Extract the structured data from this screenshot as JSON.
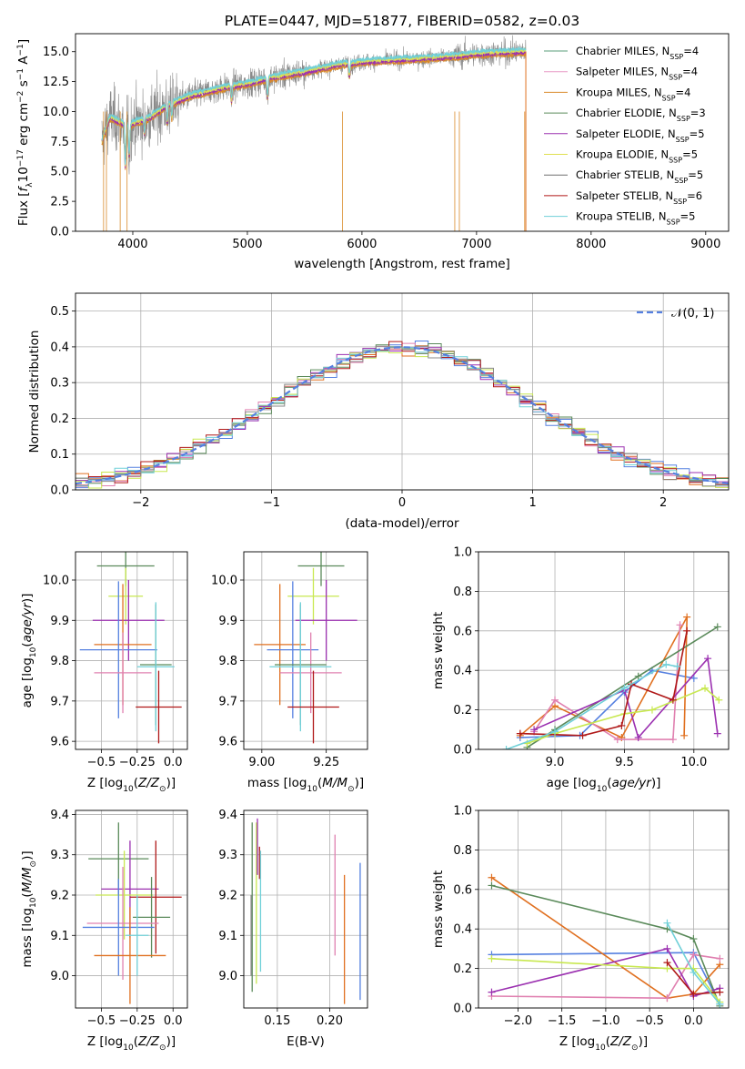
{
  "colors": {
    "c_mi": "#5a9e7a",
    "s_mi": "#e89ac6",
    "k_mi": "#d98a2a",
    "c_el": "#5a8a5a",
    "s_el": "#9b30b0",
    "k_el": "#e0e050",
    "c_st": "#707070",
    "s_st": "#b01818",
    "k_st": "#70d0d8",
    "blue": "#5580e0",
    "orange": "#e07020",
    "pink": "#e080b0",
    "green": "#5a8a5a",
    "purple": "#9b30b0",
    "lime": "#c8e850",
    "red": "#b01818",
    "cyan": "#70d0d8",
    "gray": "#8a8a8a"
  },
  "chart_data": [
    {
      "id": "spectrum",
      "type": "line",
      "title": "PLATE=0447, MJD=51877, FIBERID=0582, z=0.03",
      "xlabel": "wavelength [Angstrom, rest frame]",
      "ylabel": "Flux [f_λ 10^-17 erg cm^-2 s^-1 A^-1]",
      "xlim": [
        3500,
        9200
      ],
      "ylim": [
        0,
        16.5
      ],
      "xticks": [
        "4000",
        "5000",
        "6000",
        "7000",
        "8000",
        "9000"
      ],
      "yticks": [
        "0.0",
        "2.5",
        "5.0",
        "7.5",
        "10.0",
        "12.5",
        "15.0"
      ],
      "grid": false,
      "legend_position": "top-right",
      "legend": [
        {
          "label": "Chabrier MILES, N",
          "sub": "SSP",
          "val": "=4",
          "color_key": "c_mi"
        },
        {
          "label": "Salpeter MILES, N",
          "sub": "SSP",
          "val": "=4",
          "color_key": "s_mi"
        },
        {
          "label": "Kroupa MILES, N",
          "sub": "SSP",
          "val": "=4",
          "color_key": "k_mi"
        },
        {
          "label": "Chabrier ELODIE, N",
          "sub": "SSP",
          "val": "=3",
          "color_key": "c_el"
        },
        {
          "label": "Salpeter ELODIE, N",
          "sub": "SSP",
          "val": "=5",
          "color_key": "s_el"
        },
        {
          "label": "Kroupa ELODIE, N",
          "sub": "SSP",
          "val": "=5",
          "color_key": "k_el"
        },
        {
          "label": "Chabrier STELIB, N",
          "sub": "SSP",
          "val": "=5",
          "color_key": "c_st"
        },
        {
          "label": "Salpeter STELIB, N",
          "sub": "SSP",
          "val": "=6",
          "color_key": "s_st"
        },
        {
          "label": "Kroupa STELIB, N",
          "sub": "SSP",
          "val": "=5",
          "color_key": "k_st"
        }
      ],
      "data_range": [
        3730,
        7430
      ],
      "continuum": [
        [
          3730,
          7.5
        ],
        [
          3800,
          9.5
        ],
        [
          3950,
          8.8
        ],
        [
          4150,
          9.5
        ],
        [
          4300,
          10.5
        ],
        [
          4500,
          11.3
        ],
        [
          4800,
          12.0
        ],
        [
          5000,
          12.3
        ],
        [
          5200,
          12.8
        ],
        [
          5500,
          13.3
        ],
        [
          5800,
          13.9
        ],
        [
          6100,
          14.2
        ],
        [
          6500,
          14.4
        ],
        [
          6800,
          14.6
        ],
        [
          7000,
          14.8
        ],
        [
          7200,
          14.9
        ],
        [
          7430,
          15.0
        ]
      ],
      "absorption": [
        [
          3934,
          3.5
        ],
        [
          3969,
          2.5
        ],
        [
          4102,
          1.2
        ],
        [
          4300,
          1.4
        ],
        [
          4340,
          1.2
        ],
        [
          4861,
          1.2
        ],
        [
          5175,
          1.5
        ],
        [
          5890,
          1.0
        ]
      ],
      "spikes": [
        [
          3745,
          0
        ],
        [
          3770,
          0
        ],
        [
          3890,
          0
        ],
        [
          3950,
          0
        ],
        [
          5830,
          0
        ],
        [
          6810,
          0
        ],
        [
          6850,
          0
        ],
        [
          7420,
          0
        ]
      ]
    },
    {
      "id": "residuals",
      "type": "histogram",
      "xlabel": "(data-model)/error",
      "ylabel": "Normed distribution",
      "xlim": [
        -2.5,
        2.5
      ],
      "ylim": [
        0,
        0.55
      ],
      "xticks": [
        "−2",
        "−1",
        "0",
        "1",
        "2"
      ],
      "yticks": [
        "0.0",
        "0.1",
        "0.2",
        "0.3",
        "0.4",
        "0.5"
      ],
      "grid": true,
      "legend_position": "top-right",
      "legend": [
        {
          "label": "𝒩(0, 1)",
          "color_key": "blue",
          "dashed": true
        }
      ],
      "bin_width": 0.1
    },
    {
      "id": "age_vs_Z",
      "type": "errorbar",
      "xlabel": "Z [log10(Z/Z⊙)]",
      "ylabel": "age [log10(age/yr)]",
      "xlim": [
        -0.68,
        0.1
      ],
      "ylim": [
        9.58,
        10.07
      ],
      "xticks": [
        "−0.5",
        "−0.25",
        "0.0"
      ],
      "yticks": [
        "9.6",
        "9.7",
        "9.8",
        "9.9",
        "10.0"
      ],
      "grid": true,
      "points": [
        {
          "x": -0.33,
          "y": 10.035,
          "xe": 0.2,
          "ye": 0.05,
          "c": "green"
        },
        {
          "x": -0.33,
          "y": 9.96,
          "xe": 0.12,
          "ye": 0.07,
          "c": "lime"
        },
        {
          "x": -0.31,
          "y": 9.9,
          "xe": 0.25,
          "ye": 0.1,
          "c": "purple"
        },
        {
          "x": -0.35,
          "y": 9.84,
          "xe": 0.2,
          "ye": 0.15,
          "c": "orange"
        },
        {
          "x": -0.38,
          "y": 9.827,
          "xe": 0.27,
          "ye": 0.17,
          "c": "blue"
        },
        {
          "x": -0.35,
          "y": 9.77,
          "xe": 0.2,
          "ye": 0.1,
          "c": "pink"
        },
        {
          "x": -0.12,
          "y": 9.79,
          "xe": 0.11,
          "ye": 0.15,
          "c": "green"
        },
        {
          "x": -0.12,
          "y": 9.785,
          "xe": 0.13,
          "ye": 0.16,
          "c": "cyan"
        },
        {
          "x": -0.1,
          "y": 9.685,
          "xe": 0.16,
          "ye": 0.09,
          "c": "red"
        }
      ]
    },
    {
      "id": "age_vs_mass",
      "type": "errorbar",
      "xlabel": "mass [log10(M/M⊙)]",
      "ylabel": "",
      "xlim": [
        8.93,
        9.41
      ],
      "ylim": [
        9.58,
        10.07
      ],
      "xticks": [
        "9.00",
        "9.25"
      ],
      "yticks": [
        "9.6",
        "9.7",
        "9.8",
        "9.9",
        "10.0"
      ],
      "grid": true,
      "points": [
        {
          "x": 9.23,
          "y": 10.035,
          "xe": 0.09,
          "ye": 0.05,
          "c": "green"
        },
        {
          "x": 9.2,
          "y": 9.96,
          "xe": 0.1,
          "ye": 0.07,
          "c": "lime"
        },
        {
          "x": 9.25,
          "y": 9.9,
          "xe": 0.12,
          "ye": 0.1,
          "c": "purple"
        },
        {
          "x": 9.07,
          "y": 9.84,
          "xe": 0.1,
          "ye": 0.15,
          "c": "orange"
        },
        {
          "x": 9.12,
          "y": 9.827,
          "xe": 0.1,
          "ye": 0.17,
          "c": "blue"
        },
        {
          "x": 9.19,
          "y": 9.77,
          "xe": 0.12,
          "ye": 0.1,
          "c": "pink"
        },
        {
          "x": 9.15,
          "y": 9.79,
          "xe": 0.1,
          "ye": 0.15,
          "c": "green"
        },
        {
          "x": 9.15,
          "y": 9.785,
          "xe": 0.12,
          "ye": 0.16,
          "c": "cyan"
        },
        {
          "x": 9.2,
          "y": 9.685,
          "xe": 0.1,
          "ye": 0.09,
          "c": "red"
        }
      ]
    },
    {
      "id": "weight_vs_age",
      "type": "line",
      "xlabel": "age [log10(age/yr)]",
      "ylabel": "mass weight",
      "xlim": [
        8.45,
        10.25
      ],
      "ylim": [
        0,
        1.0
      ],
      "xticks": [
        "9.0",
        "9.5",
        "10.0"
      ],
      "yticks": [
        "0.0",
        "0.2",
        "0.4",
        "0.6",
        "0.8",
        "1.0"
      ],
      "grid": true,
      "series": [
        {
          "c": "blue",
          "x": [
            8.75,
            9.18,
            9.5,
            9.7,
            10.0
          ],
          "y": [
            0.06,
            0.07,
            0.29,
            0.4,
            0.36
          ]
        },
        {
          "c": "orange",
          "x": [
            8.75,
            9.0,
            9.48,
            9.95,
            9.93
          ],
          "y": [
            0.07,
            0.22,
            0.06,
            0.67,
            0.07
          ]
        },
        {
          "c": "pink",
          "x": [
            8.85,
            9.0,
            9.45,
            9.85,
            9.9
          ],
          "y": [
            0.09,
            0.25,
            0.05,
            0.05,
            0.63
          ]
        },
        {
          "c": "green",
          "x": [
            8.8,
            9.0,
            9.6,
            10.17
          ],
          "y": [
            0.01,
            0.1,
            0.37,
            0.62
          ]
        },
        {
          "c": "purple",
          "x": [
            8.85,
            9.5,
            9.6,
            10.1,
            10.17
          ],
          "y": [
            0.1,
            0.3,
            0.06,
            0.46,
            0.08
          ]
        },
        {
          "c": "lime",
          "x": [
            8.8,
            9.0,
            9.5,
            9.7,
            10.08,
            10.18
          ],
          "y": [
            0.03,
            0.08,
            0.18,
            0.2,
            0.31,
            0.25
          ]
        },
        {
          "c": "red",
          "x": [
            8.75,
            9.2,
            9.48,
            9.55,
            9.85,
            9.95
          ],
          "y": [
            0.08,
            0.07,
            0.12,
            0.33,
            0.25,
            0.6
          ]
        },
        {
          "c": "cyan",
          "x": [
            8.65,
            9.0,
            9.5,
            9.8,
            9.88
          ],
          "y": [
            0.0,
            0.09,
            0.31,
            0.43,
            0.42
          ]
        }
      ]
    },
    {
      "id": "mass_vs_Z",
      "type": "errorbar",
      "xlabel": "Z [log10(Z/Z⊙)]",
      "ylabel": "mass [log10(M/M⊙)]",
      "xlim": [
        -0.68,
        0.1
      ],
      "ylim": [
        8.92,
        9.41
      ],
      "xticks": [
        "−0.5",
        "−0.25",
        "0.0"
      ],
      "yticks": [
        "9.0",
        "9.1",
        "9.2",
        "9.3",
        "9.4"
      ],
      "grid": true,
      "points": [
        {
          "x": -0.38,
          "y": 9.29,
          "xe": 0.21,
          "ye": 0.09,
          "c": "green"
        },
        {
          "x": -0.3,
          "y": 9.215,
          "xe": 0.2,
          "ye": 0.12,
          "c": "purple"
        },
        {
          "x": -0.34,
          "y": 9.2,
          "xe": 0.2,
          "ye": 0.11,
          "c": "lime"
        },
        {
          "x": -0.12,
          "y": 9.195,
          "xe": 0.18,
          "ye": 0.14,
          "c": "red"
        },
        {
          "x": -0.15,
          "y": 9.145,
          "xe": 0.13,
          "ye": 0.1,
          "c": "green"
        },
        {
          "x": -0.35,
          "y": 9.13,
          "xe": 0.25,
          "ye": 0.14,
          "c": "pink"
        },
        {
          "x": -0.38,
          "y": 9.12,
          "xe": 0.25,
          "ye": 0.12,
          "c": "blue"
        },
        {
          "x": -0.3,
          "y": 9.05,
          "xe": 0.25,
          "ye": 0.12,
          "c": "orange"
        },
        {
          "x": -0.25,
          "y": 9.1,
          "xe": 0.08,
          "ye": 0.1,
          "c": "cyan"
        }
      ]
    },
    {
      "id": "mass_vs_ebv",
      "type": "errorbar",
      "xlabel": "E(B-V)",
      "ylabel": "",
      "xlim": [
        0.118,
        0.236
      ],
      "ylim": [
        8.92,
        9.41
      ],
      "xticks": [
        "0.15",
        "0.20"
      ],
      "yticks": [
        "9.0",
        "9.1",
        "9.2",
        "9.3",
        "9.4"
      ],
      "grid": true,
      "points": [
        {
          "x": 0.126,
          "y": 9.17,
          "xe": 0,
          "ye": 0.21,
          "c": "green"
        },
        {
          "x": 0.13,
          "y": 9.18,
          "xe": 0,
          "ye": 0.2,
          "c": "lime"
        },
        {
          "x": 0.131,
          "y": 9.32,
          "xe": 0,
          "ye": 0.07,
          "c": "purple"
        },
        {
          "x": 0.133,
          "y": 9.28,
          "xe": 0,
          "ye": 0.04,
          "c": "red"
        },
        {
          "x": 0.134,
          "y": 9.16,
          "xe": 0,
          "ye": 0.15,
          "c": "cyan"
        },
        {
          "x": 0.205,
          "y": 9.2,
          "xe": 0,
          "ye": 0.15,
          "c": "pink"
        },
        {
          "x": 0.214,
          "y": 9.09,
          "xe": 0,
          "ye": 0.16,
          "c": "orange"
        },
        {
          "x": 0.229,
          "y": 9.11,
          "xe": 0,
          "ye": 0.17,
          "c": "blue"
        },
        {
          "x": 0.125,
          "y": 9.1,
          "xe": 0,
          "ye": 0.1,
          "c": "gray"
        }
      ]
    },
    {
      "id": "weight_vs_Z",
      "type": "line",
      "xlabel": "Z [log10(Z/Z⊙)]",
      "ylabel": "mass weight",
      "xlim": [
        -2.45,
        0.4
      ],
      "ylim": [
        0,
        1.0
      ],
      "xticks": [
        "−2.0",
        "−1.5",
        "−1.0",
        "−0.5",
        "0.0"
      ],
      "yticks": [
        "0.0",
        "0.2",
        "0.4",
        "0.6",
        "0.8",
        "1.0"
      ],
      "grid": true,
      "series": [
        {
          "c": "blue",
          "x": [
            -2.3,
            0.0,
            0.3
          ],
          "y": [
            0.27,
            0.28,
            0.02
          ]
        },
        {
          "c": "orange",
          "x": [
            -2.3,
            -0.3,
            0.0,
            0.3
          ],
          "y": [
            0.66,
            0.05,
            0.07,
            0.22
          ]
        },
        {
          "c": "pink",
          "x": [
            -2.3,
            -0.3,
            0.0,
            0.3
          ],
          "y": [
            0.06,
            0.05,
            0.27,
            0.25
          ]
        },
        {
          "c": "green",
          "x": [
            -2.3,
            -0.3,
            0.0,
            0.3
          ],
          "y": [
            0.62,
            0.4,
            0.35,
            0.01
          ]
        },
        {
          "c": "purple",
          "x": [
            -2.3,
            -0.3,
            0.0,
            0.3
          ],
          "y": [
            0.08,
            0.3,
            0.06,
            0.1
          ]
        },
        {
          "c": "lime",
          "x": [
            -2.3,
            -0.3,
            0.0,
            0.3
          ],
          "y": [
            0.25,
            0.2,
            0.2,
            0.03
          ]
        },
        {
          "c": "red",
          "x": [
            -0.3,
            0.0,
            0.3
          ],
          "y": [
            0.23,
            0.07,
            0.08
          ]
        },
        {
          "c": "cyan",
          "x": [
            -0.3,
            0.0,
            0.3
          ],
          "y": [
            0.43,
            0.18,
            0.02
          ]
        }
      ]
    }
  ]
}
